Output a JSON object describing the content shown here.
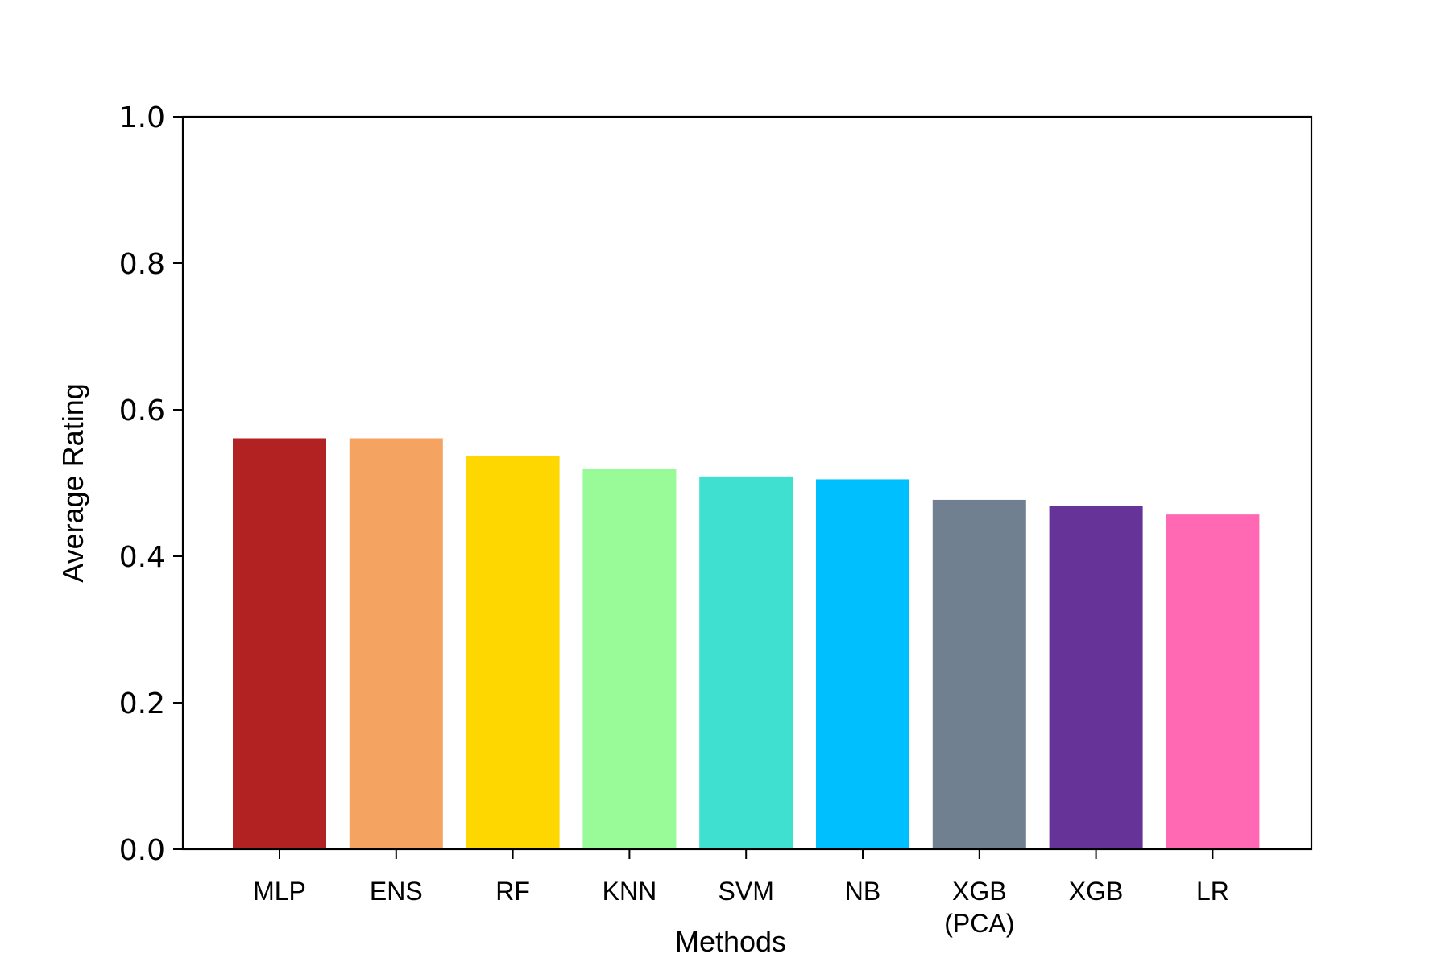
{
  "chart_data": {
    "type": "bar",
    "title": "",
    "xlabel": "Methods",
    "ylabel": "Average Rating",
    "ylim": [
      0,
      1.0
    ],
    "yticks": [
      "0.0",
      "0.2",
      "0.4",
      "0.6",
      "0.8",
      "1.0"
    ],
    "categories": [
      [
        "MLP"
      ],
      [
        "ENS"
      ],
      [
        "RF"
      ],
      [
        "KNN"
      ],
      [
        "SVM"
      ],
      [
        "NB"
      ],
      [
        "XGB",
        "(PCA)"
      ],
      [
        "XGB"
      ],
      [
        "LR"
      ]
    ],
    "values": [
      0.561,
      0.561,
      0.537,
      0.519,
      0.509,
      0.505,
      0.477,
      0.469,
      0.457
    ],
    "colors": [
      "#b22222",
      "#f4a460",
      "#ffd700",
      "#98fb98",
      "#40e0d0",
      "#00bfff",
      "#708090",
      "#663399",
      "#ff69b4"
    ],
    "grid": false,
    "legend": "none"
  }
}
